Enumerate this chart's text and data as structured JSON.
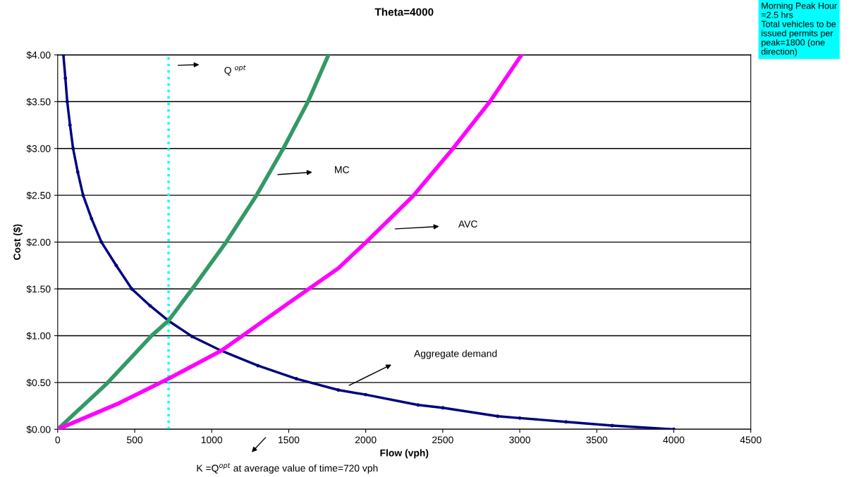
{
  "chart_data": {
    "type": "line",
    "title": "Theta=4000",
    "xlabel": "Flow (vph)",
    "ylabel": "Cost ($)",
    "xlim": [
      0,
      4500
    ],
    "xticks": [
      0,
      500,
      1000,
      1500,
      2000,
      2500,
      3000,
      3500,
      4000,
      4500
    ],
    "ylim": [
      0,
      4
    ],
    "yticks": [
      {
        "value": 0,
        "label": "$0.00"
      },
      {
        "value": 0.5,
        "label": "$0.50"
      },
      {
        "value": 1,
        "label": "$1.00"
      },
      {
        "value": 1.5,
        "label": "$1.50"
      },
      {
        "value": 2,
        "label": "$2.00"
      },
      {
        "value": 2.5,
        "label": "$2.50"
      },
      {
        "value": 3,
        "label": "$3.00"
      },
      {
        "value": 3.5,
        "label": "$3.50"
      },
      {
        "value": 4,
        "label": "$4.00"
      }
    ],
    "grid": "y",
    "legend": false,
    "series": [
      {
        "color": "#000080",
        "marker": "circle",
        "x": [
          37,
          50,
          62,
          80,
          100,
          130,
          165,
          220,
          284,
          380,
          481,
          600,
          719,
          874,
          1062,
          1300,
          1550,
          1822,
          2000,
          2340,
          2500,
          2857,
          3000,
          3300,
          3600,
          4000
        ],
        "values": [
          4.0,
          3.75,
          3.5,
          3.25,
          3.0,
          2.75,
          2.5,
          2.25,
          2.0,
          1.75,
          1.5,
          1.32,
          1.16,
          0.99,
          0.84,
          0.68,
          0.54,
          0.42,
          0.37,
          0.26,
          0.23,
          0.14,
          0.12,
          0.08,
          0.04,
          0.0
        ]
      },
      {
        "color": "#339966",
        "x": [
          0,
          320,
          610,
          719,
          874,
          1094,
          1291,
          1465,
          1625,
          1758
        ],
        "values": [
          0,
          0.49,
          1.0,
          1.16,
          1.5,
          2.0,
          2.5,
          3.0,
          3.5,
          4.0
        ]
      },
      {
        "color": "#ff00ff",
        "x": [
          0,
          400,
          719,
          1062,
          1200,
          1500,
          1822,
          1996,
          2306,
          2562,
          2806,
          3012
        ],
        "values": [
          0,
          0.28,
          0.54,
          0.84,
          1.0,
          1.35,
          1.72,
          1.99,
          2.49,
          2.99,
          3.5,
          4.0
        ]
      }
    ],
    "ref_lines": [
      {
        "axis": "x",
        "value": 720,
        "color": "#00ffff",
        "line_style": "dotted"
      }
    ],
    "annotations": [
      "Q $^{opt}$",
      "MC",
      "AVC",
      "Aggregate demand",
      "K =Q$^{opt}$ at average value of time=720 vph",
      "Morning Peak Hour\n=2.5 hrs\nTotal vehicles to be\nissued permits per\npeak=1800 (one\ndirection)"
    ]
  }
}
